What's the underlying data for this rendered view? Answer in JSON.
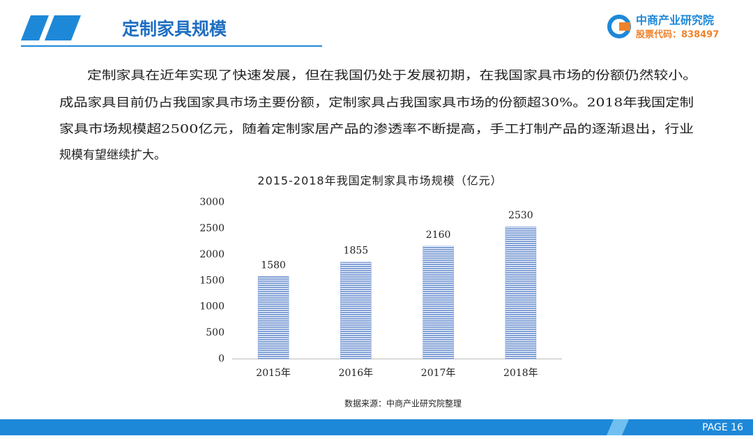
{
  "header": {
    "title": "定制家具规模"
  },
  "logo": {
    "name": "中商产业研究院",
    "code": "股票代码：838497"
  },
  "paragraph": [
    "定制家具在近年实现了快速发展，但在我国仍处于发展初期，在我国家具市场的份额仍然较小。",
    "成品家具目前仍占我国家具市场主要份额，定制家具占我国家具市场的份额超30%。2018年我国定制",
    "家具市场规模超2500亿元，随着定制家居产品的渗透率不断提高，手工打制产品的逐渐退出，行业",
    "规模有望继续扩大。"
  ],
  "chart_data": {
    "type": "bar",
    "title": "2015-2018年我国定制家具市场规模（亿元）",
    "categories": [
      "2015年",
      "2016年",
      "2017年",
      "2018年"
    ],
    "values": [
      1580,
      1855,
      2160,
      2530
    ],
    "color": "#7f9fd6",
    "ylim": [
      0,
      3000
    ],
    "yticks": [
      0,
      500,
      1000,
      1500,
      2000,
      2500,
      3000
    ],
    "grid": false
  },
  "source": "数据来源：中商产业研究院整理",
  "footer": {
    "page": "PAGE 16"
  }
}
